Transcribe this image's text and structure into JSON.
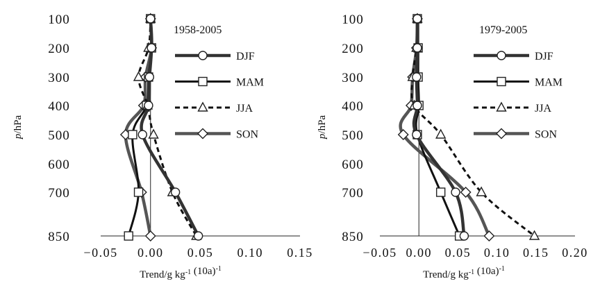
{
  "chart_data": [
    {
      "type": "line",
      "period": "1958-2005",
      "xlabel": "Trend/g kg-1 (10a)-1",
      "ylabel": "p/hPa",
      "xlim": [
        -0.05,
        0.15
      ],
      "xticks": [
        "-0.05",
        "0.00",
        "0.05",
        "0.10",
        "0.15"
      ],
      "ylevels": [
        100,
        200,
        300,
        400,
        500,
        600,
        700,
        850
      ],
      "series": [
        {
          "name": "DJF",
          "marker": "circle",
          "values": [
            {
              "p": 100,
              "x": 0.0
            },
            {
              "p": 200,
              "x": 0.001
            },
            {
              "p": 300,
              "x": -0.001
            },
            {
              "p": 400,
              "x": -0.002
            },
            {
              "p": 500,
              "x": -0.008
            },
            {
              "p": 700,
              "x": 0.025
            },
            {
              "p": 850,
              "x": 0.048
            }
          ]
        },
        {
          "name": "MAM",
          "marker": "square",
          "values": [
            {
              "p": 100,
              "x": 0.0
            },
            {
              "p": 200,
              "x": 0.001
            },
            {
              "p": 300,
              "x": -0.002
            },
            {
              "p": 400,
              "x": -0.004
            },
            {
              "p": 500,
              "x": -0.018
            },
            {
              "p": 700,
              "x": -0.012
            },
            {
              "p": 850,
              "x": -0.022
            }
          ]
        },
        {
          "name": "JJA",
          "marker": "triangle",
          "values": [
            {
              "p": 100,
              "x": 0.0
            },
            {
              "p": 200,
              "x": -0.002
            },
            {
              "p": 300,
              "x": -0.012
            },
            {
              "p": 400,
              "x": -0.003
            },
            {
              "p": 500,
              "x": 0.003
            },
            {
              "p": 700,
              "x": 0.022
            },
            {
              "p": 850,
              "x": 0.046
            }
          ]
        },
        {
          "name": "SON",
          "marker": "diamond",
          "values": [
            {
              "p": 100,
              "x": 0.0
            },
            {
              "p": 200,
              "x": 0.001
            },
            {
              "p": 300,
              "x": -0.005
            },
            {
              "p": 400,
              "x": -0.007
            },
            {
              "p": 500,
              "x": -0.025
            },
            {
              "p": 700,
              "x": -0.009
            },
            {
              "p": 850,
              "x": 0.0
            }
          ]
        }
      ]
    },
    {
      "type": "line",
      "period": "1979-2005",
      "xlabel": "Trend/g kg-1 (10a)-1",
      "ylabel": "p/hPa",
      "xlim": [
        -0.05,
        0.2
      ],
      "xticks": [
        "-0.05",
        "0.00",
        "0.05",
        "0.10",
        "0.15",
        "0.20"
      ],
      "ylevels": [
        100,
        200,
        300,
        400,
        500,
        600,
        700,
        850
      ],
      "series": [
        {
          "name": "DJF",
          "marker": "circle",
          "values": [
            {
              "p": 100,
              "x": -0.002
            },
            {
              "p": 200,
              "x": -0.002
            },
            {
              "p": 300,
              "x": -0.003
            },
            {
              "p": 400,
              "x": -0.002
            },
            {
              "p": 500,
              "x": -0.003
            },
            {
              "p": 700,
              "x": 0.047
            },
            {
              "p": 850,
              "x": 0.058
            }
          ]
        },
        {
          "name": "MAM",
          "marker": "square",
          "values": [
            {
              "p": 100,
              "x": -0.002
            },
            {
              "p": 200,
              "x": -0.001
            },
            {
              "p": 300,
              "x": -0.001
            },
            {
              "p": 400,
              "x": 0.0
            },
            {
              "p": 500,
              "x": -0.002
            },
            {
              "p": 700,
              "x": 0.028
            },
            {
              "p": 850,
              "x": 0.052
            }
          ]
        },
        {
          "name": "JJA",
          "marker": "triangle",
          "values": [
            {
              "p": 100,
              "x": -0.002
            },
            {
              "p": 200,
              "x": -0.003
            },
            {
              "p": 300,
              "x": -0.008
            },
            {
              "p": 400,
              "x": -0.006
            },
            {
              "p": 500,
              "x": 0.028
            },
            {
              "p": 700,
              "x": 0.08
            },
            {
              "p": 850,
              "x": 0.148
            }
          ]
        },
        {
          "name": "SON",
          "marker": "diamond",
          "values": [
            {
              "p": 100,
              "x": -0.002
            },
            {
              "p": 200,
              "x": -0.003
            },
            {
              "p": 300,
              "x": -0.008
            },
            {
              "p": 400,
              "x": -0.01
            },
            {
              "p": 500,
              "x": -0.02
            },
            {
              "p": 700,
              "x": 0.06
            },
            {
              "p": 850,
              "x": 0.09
            }
          ]
        }
      ]
    }
  ],
  "legend_placement": "right-middle",
  "styles": {
    "DJF": {
      "color": "#333333",
      "dash": "none",
      "weight": "heavy"
    },
    "MAM": {
      "color": "#111111",
      "dash": "none",
      "weight": "medium"
    },
    "JJA": {
      "color": "#111111",
      "dash": "dashed",
      "weight": "medium"
    },
    "SON": {
      "color": "#555555",
      "dash": "none",
      "weight": "heavy"
    }
  }
}
